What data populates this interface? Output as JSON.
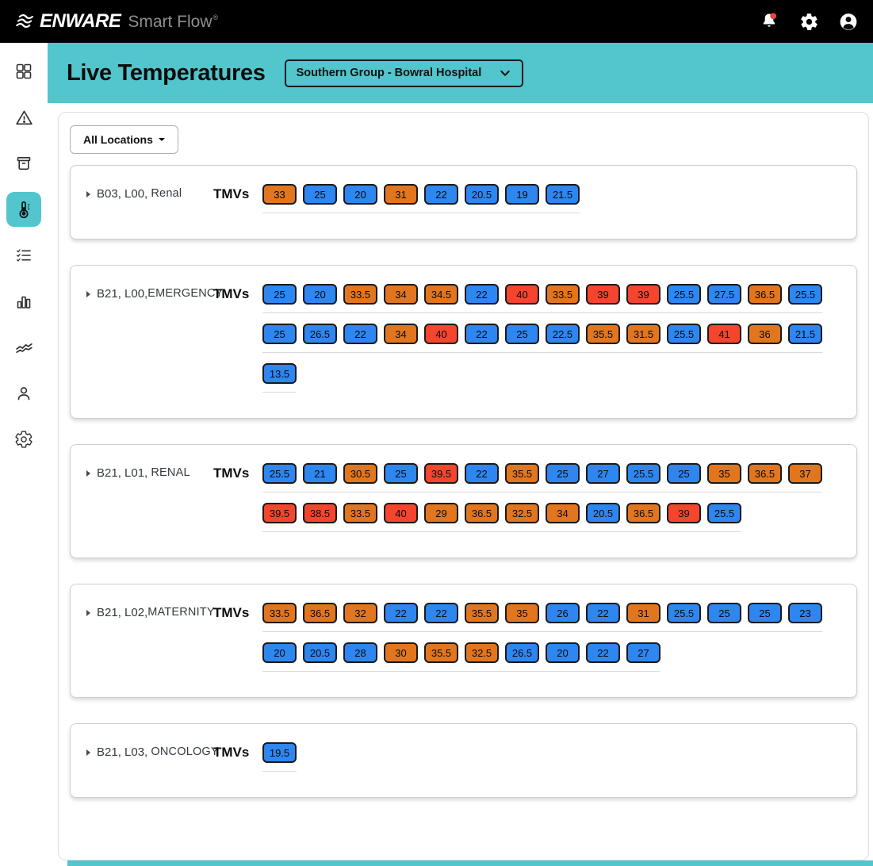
{
  "header": {
    "brand": "ENWARE",
    "product": "Smart Flow",
    "registered": "®"
  },
  "banner": {
    "title": "Live Temperatures",
    "site_selector_value": "Southern Group - Bowral Hospital"
  },
  "filters": {
    "all_locations_label": "All Locations"
  },
  "tmv_label": "TMVs",
  "sidebar": {
    "active_index": 3,
    "items": [
      {
        "icon": "dashboard-icon"
      },
      {
        "icon": "alerts-warning-icon"
      },
      {
        "icon": "archive-icon"
      },
      {
        "icon": "thermometer-icon"
      },
      {
        "icon": "checklist-icon"
      },
      {
        "icon": "bar-chart-icon"
      },
      {
        "icon": "trend-lines-icon"
      },
      {
        "icon": "user-icon"
      },
      {
        "icon": "settings-icon"
      }
    ]
  },
  "colors": {
    "teal": "#52c5cd",
    "blue": "#2e86f0",
    "orange": "#e2761f",
    "red": "#f5452e",
    "notification": "#e8463c"
  },
  "cards": [
    {
      "prefix": "B03, L00, ",
      "ward": "Renal",
      "rows": [
        [
          {
            "value": "33",
            "color": "orange"
          },
          {
            "value": "25",
            "color": "blue"
          },
          {
            "value": "20",
            "color": "blue"
          },
          {
            "value": "31",
            "color": "orange"
          },
          {
            "value": "22",
            "color": "blue"
          },
          {
            "value": "20.5",
            "color": "blue"
          },
          {
            "value": "19",
            "color": "blue"
          },
          {
            "value": "21.5",
            "color": "blue"
          }
        ]
      ]
    },
    {
      "prefix": "B21, L00,",
      "ward": "EMERGENCY",
      "rows": [
        [
          {
            "value": "25",
            "color": "blue"
          },
          {
            "value": "20",
            "color": "blue"
          },
          {
            "value": "33.5",
            "color": "orange"
          },
          {
            "value": "34",
            "color": "orange"
          },
          {
            "value": "34.5",
            "color": "orange"
          },
          {
            "value": "22",
            "color": "blue"
          },
          {
            "value": "40",
            "color": "red"
          },
          {
            "value": "33.5",
            "color": "orange"
          },
          {
            "value": "39",
            "color": "red"
          },
          {
            "value": "39",
            "color": "red"
          },
          {
            "value": "25.5",
            "color": "blue"
          },
          {
            "value": "27.5",
            "color": "blue"
          },
          {
            "value": "36.5",
            "color": "orange"
          },
          {
            "value": "25.5",
            "color": "blue"
          }
        ],
        [
          {
            "value": "25",
            "color": "blue"
          },
          {
            "value": "26.5",
            "color": "blue"
          },
          {
            "value": "22",
            "color": "blue"
          },
          {
            "value": "34",
            "color": "orange"
          },
          {
            "value": "40",
            "color": "red"
          },
          {
            "value": "22",
            "color": "blue"
          },
          {
            "value": "25",
            "color": "blue"
          },
          {
            "value": "22.5",
            "color": "blue"
          },
          {
            "value": "35.5",
            "color": "orange"
          },
          {
            "value": "31.5",
            "color": "orange"
          },
          {
            "value": "25.5",
            "color": "blue"
          },
          {
            "value": "41",
            "color": "red"
          },
          {
            "value": "36",
            "color": "orange"
          },
          {
            "value": "21.5",
            "color": "blue"
          }
        ],
        [
          {
            "value": "13.5",
            "color": "blue"
          }
        ]
      ]
    },
    {
      "prefix": "B21, L01, ",
      "ward": "RENAL",
      "rows": [
        [
          {
            "value": "25.5",
            "color": "blue"
          },
          {
            "value": "21",
            "color": "blue"
          },
          {
            "value": "30.5",
            "color": "orange"
          },
          {
            "value": "25",
            "color": "blue"
          },
          {
            "value": "39.5",
            "color": "red"
          },
          {
            "value": "22",
            "color": "blue"
          },
          {
            "value": "35.5",
            "color": "orange"
          },
          {
            "value": "25",
            "color": "blue"
          },
          {
            "value": "27",
            "color": "blue"
          },
          {
            "value": "25.5",
            "color": "blue"
          },
          {
            "value": "25",
            "color": "blue"
          },
          {
            "value": "35",
            "color": "orange"
          },
          {
            "value": "36.5",
            "color": "orange"
          },
          {
            "value": "37",
            "color": "orange"
          }
        ],
        [
          {
            "value": "39.5",
            "color": "red"
          },
          {
            "value": "38.5",
            "color": "red"
          },
          {
            "value": "33.5",
            "color": "orange"
          },
          {
            "value": "40",
            "color": "red"
          },
          {
            "value": "29",
            "color": "orange"
          },
          {
            "value": "36.5",
            "color": "orange"
          },
          {
            "value": "32.5",
            "color": "orange"
          },
          {
            "value": "34",
            "color": "orange"
          },
          {
            "value": "20.5",
            "color": "blue"
          },
          {
            "value": "36.5",
            "color": "orange"
          },
          {
            "value": "39",
            "color": "red"
          },
          {
            "value": "25.5",
            "color": "blue"
          }
        ]
      ]
    },
    {
      "prefix": "B21, L02,",
      "ward": "MATERNITY",
      "rows": [
        [
          {
            "value": "33.5",
            "color": "orange"
          },
          {
            "value": "36.5",
            "color": "orange"
          },
          {
            "value": "32",
            "color": "orange"
          },
          {
            "value": "22",
            "color": "blue"
          },
          {
            "value": "22",
            "color": "blue"
          },
          {
            "value": "35.5",
            "color": "orange"
          },
          {
            "value": "35",
            "color": "orange"
          },
          {
            "value": "26",
            "color": "blue"
          },
          {
            "value": "22",
            "color": "blue"
          },
          {
            "value": "31",
            "color": "orange"
          },
          {
            "value": "25.5",
            "color": "blue"
          },
          {
            "value": "25",
            "color": "blue"
          },
          {
            "value": "25",
            "color": "blue"
          },
          {
            "value": "23",
            "color": "blue"
          }
        ],
        [
          {
            "value": "20",
            "color": "blue"
          },
          {
            "value": "20.5",
            "color": "blue"
          },
          {
            "value": "28",
            "color": "blue"
          },
          {
            "value": "30",
            "color": "orange"
          },
          {
            "value": "35.5",
            "color": "orange"
          },
          {
            "value": "32.5",
            "color": "orange"
          },
          {
            "value": "26.5",
            "color": "blue"
          },
          {
            "value": "20",
            "color": "blue"
          },
          {
            "value": "22",
            "color": "blue"
          },
          {
            "value": "27",
            "color": "blue"
          }
        ]
      ]
    },
    {
      "prefix": "B21, L03, ",
      "ward": "ONCOLOGY",
      "rows": [
        [
          {
            "value": "19.5",
            "color": "blue"
          }
        ]
      ]
    }
  ]
}
